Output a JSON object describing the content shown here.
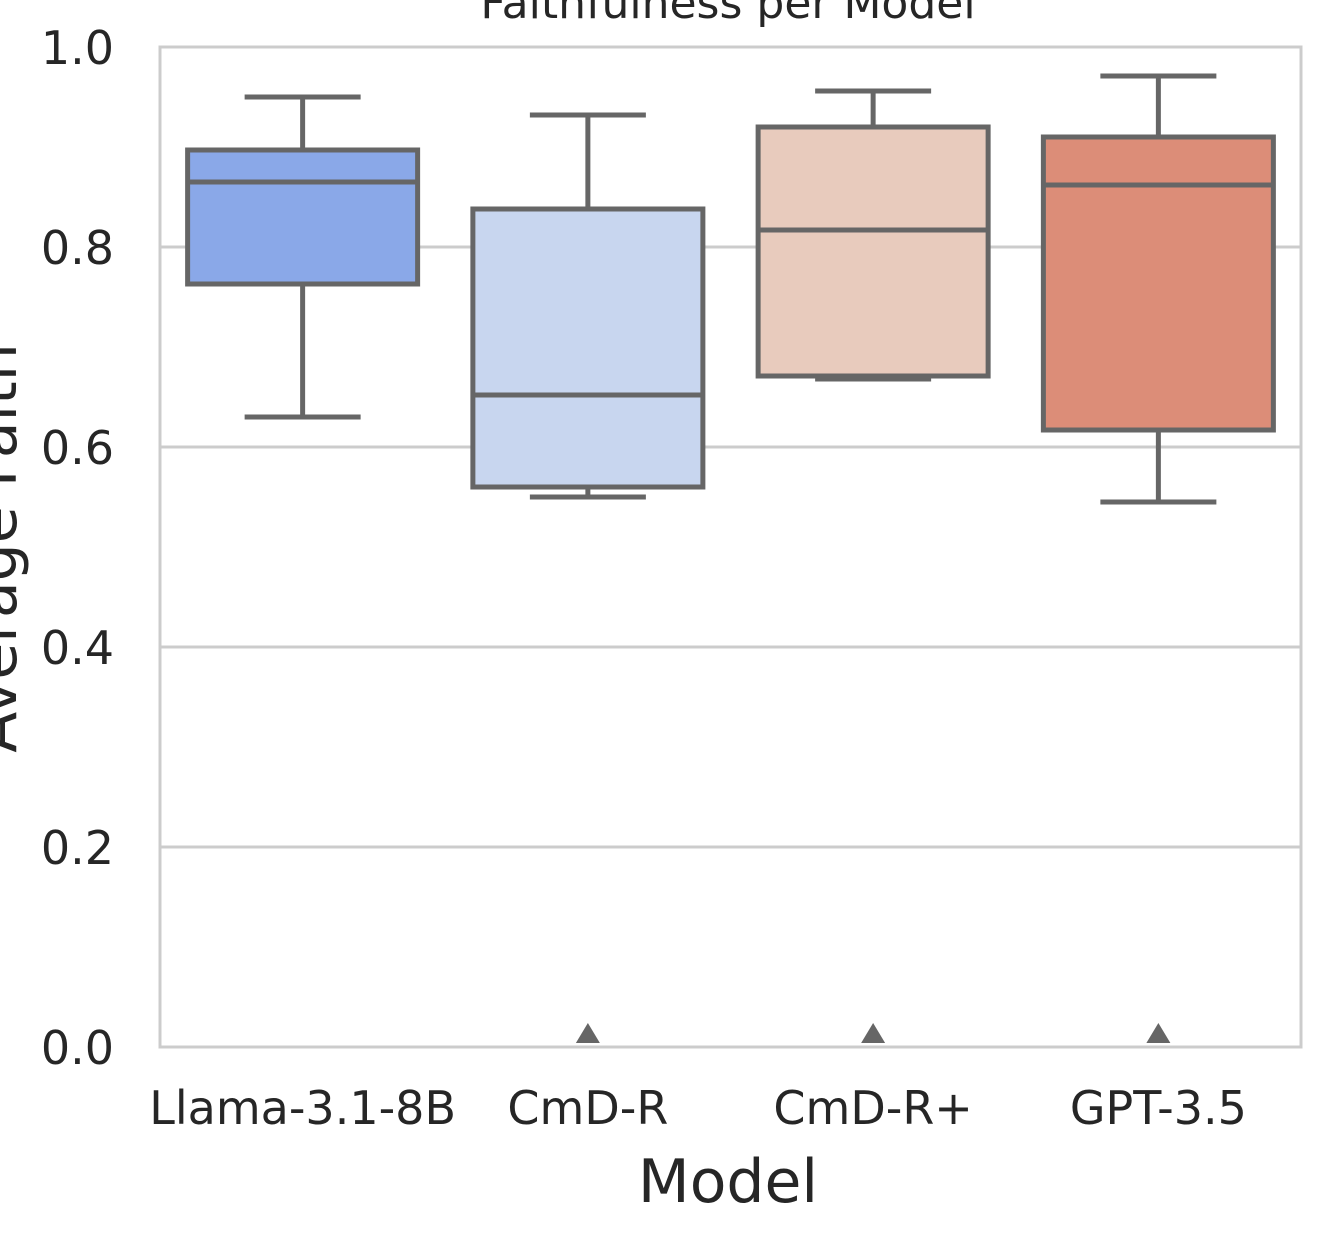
{
  "chart_data": {
    "type": "box",
    "title": "Faithfulness per Model",
    "xlabel": "Model",
    "ylabel": "Average Faith",
    "ylim": [
      0.0,
      1.0
    ],
    "yticks": [
      "0.0",
      "0.2",
      "0.4",
      "0.6",
      "0.8",
      "1.0"
    ],
    "grid": "horizontal",
    "categories": [
      "Llama-3.1-8B",
      "CmD-R",
      "CmD-R+",
      "GPT-3.5"
    ],
    "series": [
      {
        "category": "Llama-3.1-8B",
        "color": "#8aa8e8",
        "whisker_low": 0.63,
        "q1": 0.763,
        "median": 0.865,
        "q3": 0.897,
        "whisker_high": 0.95,
        "outliers": []
      },
      {
        "category": "CmD-R",
        "color": "#c8d6ef",
        "whisker_low": 0.55,
        "q1": 0.56,
        "median": 0.652,
        "q3": 0.838,
        "whisker_high": 0.932,
        "outliers": [
          0.0
        ]
      },
      {
        "category": "CmD-R+",
        "color": "#e8cbbd",
        "whisker_low": 0.668,
        "q1": 0.671,
        "median": 0.817,
        "q3": 0.92,
        "whisker_high": 0.956,
        "outliers": [
          0.0
        ]
      },
      {
        "category": "GPT-3.5",
        "color": "#dc8d78",
        "whisker_low": 0.545,
        "q1": 0.617,
        "median": 0.862,
        "q3": 0.91,
        "whisker_high": 0.971,
        "outliers": [
          0.0
        ]
      }
    ]
  }
}
